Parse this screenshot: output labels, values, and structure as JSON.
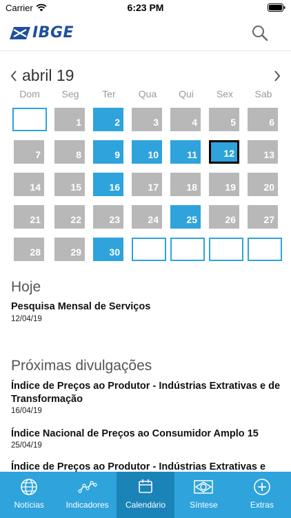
{
  "status_bar": {
    "carrier": "Carrier",
    "time": "6:23 PM"
  },
  "header": {
    "logo_text": "IBGE"
  },
  "calendar": {
    "month_label": "abril 19",
    "weekdays": [
      "Dom",
      "Seg",
      "Ter",
      "Qua",
      "Qui",
      "Sex",
      "Sab"
    ],
    "days": [
      "1",
      "2",
      "3",
      "4",
      "5",
      "6",
      "7",
      "8",
      "9",
      "10",
      "11",
      "12",
      "13",
      "14",
      "15",
      "16",
      "17",
      "18",
      "19",
      "20",
      "21",
      "22",
      "23",
      "24",
      "25",
      "26",
      "27",
      "28",
      "29",
      "30"
    ],
    "release_days": [
      "2",
      "9",
      "10",
      "11",
      "12",
      "16",
      "25",
      "30"
    ],
    "selected_day": "12"
  },
  "today_section": {
    "title": "Hoje",
    "items": [
      {
        "title": "Pesquisa Mensal de Serviços",
        "date": "12/04/19"
      }
    ]
  },
  "upcoming_section": {
    "title": "Próximas divulgações",
    "items": [
      {
        "title": "Índice de Preços ao Produtor - Indústrias Extrativas e de Transformação",
        "date": "16/04/19"
      },
      {
        "title": "Índice Nacional de Preços ao Consumidor Amplo 15",
        "date": "25/04/19"
      },
      {
        "title": "Índice de Preços ao Produtor - Indústrias Extrativas e",
        "date": ""
      }
    ]
  },
  "tab_bar": {
    "active_tab": "Calendário",
    "tabs": [
      {
        "label": "Notícias",
        "icon": "globe-icon"
      },
      {
        "label": "Indicadores",
        "icon": "line-chart-icon"
      },
      {
        "label": "Calendário",
        "icon": "calendar-icon"
      },
      {
        "label": "Síntese",
        "icon": "brazil-flag-icon"
      },
      {
        "label": "Extras",
        "icon": "plus-circle-icon"
      }
    ]
  },
  "colors": {
    "accent": "#2ea3dc",
    "active_tab": "#1a84b8",
    "day_gray": "#b8b8b8",
    "logo_blue": "#1f4f9e"
  }
}
